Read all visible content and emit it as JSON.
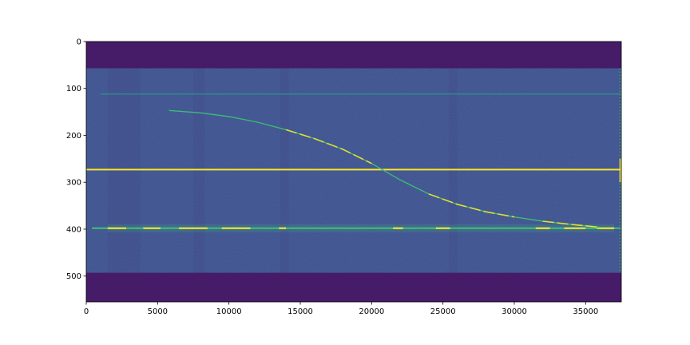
{
  "chart_data": {
    "type": "heatmap",
    "title": "",
    "xlabel": "",
    "ylabel": "",
    "xlim": [
      0,
      37500
    ],
    "ylim": [
      0,
      555
    ],
    "y_inverted": true,
    "x_ticks": [
      0,
      5000,
      10000,
      15000,
      20000,
      25000,
      30000,
      35000
    ],
    "x_tick_labels": [
      "0",
      "5000",
      "10000",
      "15000",
      "20000",
      "25000",
      "30000",
      "35000"
    ],
    "y_ticks": [
      0,
      100,
      200,
      300,
      400,
      500
    ],
    "y_tick_labels": [
      "0",
      "100",
      "200",
      "300",
      "400",
      "500"
    ],
    "colormap": "viridis",
    "colors": {
      "dark_band": "#461b68",
      "background": "#3b4f8c",
      "background_light": "#3f5a8e",
      "faint_line": "#2c9a8a",
      "trace": "#3bbb75",
      "bright": "#fde725"
    },
    "dark_bands": [
      {
        "y_start": 0,
        "y_end": 57
      },
      {
        "y_start": 493,
        "y_end": 555
      }
    ],
    "vertical_stripes": [
      {
        "x_start": 1500,
        "x_end": 3800
      },
      {
        "x_start": 7500,
        "x_end": 8300
      },
      {
        "x_start": 13600,
        "x_end": 14200
      },
      {
        "x_start": 25400,
        "x_end": 26000
      }
    ],
    "horizontal_lines": [
      {
        "y": 112,
        "x_start": 1000,
        "x_end": 37500,
        "intensity": "faint"
      },
      {
        "y": 273,
        "x_start": 0,
        "x_end": 37500,
        "intensity": "bright"
      },
      {
        "y": 398,
        "x_start": 400,
        "x_end": 37500,
        "intensity": "bright-segmented"
      }
    ],
    "curve": {
      "x": [
        5800,
        8000,
        10000,
        12000,
        14000,
        16000,
        18000,
        20000,
        22000,
        24000,
        26000,
        28000,
        30000,
        32000,
        34000,
        36000
      ],
      "y": [
        147,
        152,
        160,
        172,
        188,
        207,
        230,
        260,
        295,
        325,
        347,
        363,
        374,
        383,
        390,
        396
      ]
    }
  }
}
